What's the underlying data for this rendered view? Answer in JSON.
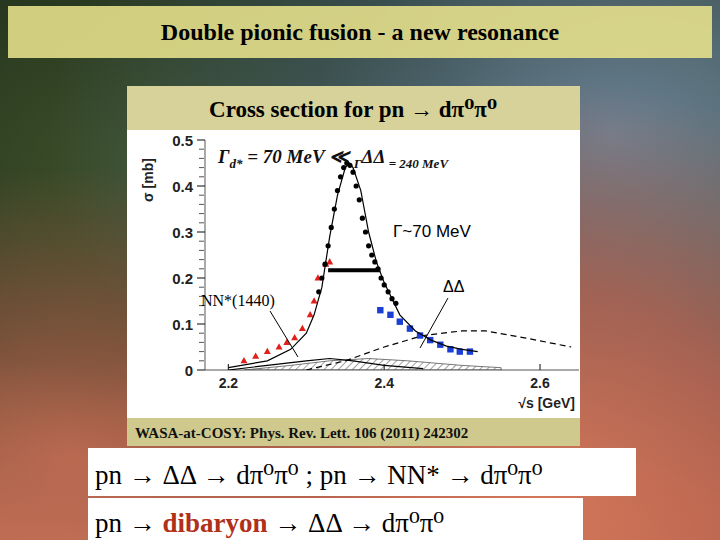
{
  "slide": {
    "title": "Double pionic fusion - a new resonance",
    "reference": "WASA-at-COSY: Phys. Rev. Lett. 106 (2011) 242302",
    "reactions": "pn → ΔΔ → dπ⁰π⁰ ; pn → NN* → dπ⁰π⁰",
    "dibaryon_reaction": [
      "pn → ",
      "dibaryon",
      " → ΔΔ → dπ⁰π⁰"
    ]
  },
  "chart_data": {
    "type": "scatter",
    "title": "Cross section for pn → dπ⁰π⁰",
    "x_label": "√s [GeV]",
    "y_label": "σ [mb]",
    "width_note": [
      "Γ",
      "d*",
      " = 70 MeV ≪ ",
      "Γ",
      "ΔΔ",
      " = 240 MeV"
    ],
    "annotations": [
      "Γ~70 MeV",
      "ΔΔ",
      "NN*(1440)"
    ],
    "xlim": [
      2.17,
      2.65
    ],
    "ylim": [
      0,
      0.5
    ],
    "xticks": [
      2.2,
      2.4,
      2.6
    ],
    "yticks": [
      0,
      0.1,
      0.2,
      0.3,
      0.4,
      0.5
    ],
    "grid": false,
    "series": [
      {
        "type": "area",
        "color": "#555555",
        "line_style": "solid",
        "x": [
          2.22,
          2.28,
          2.33,
          2.38,
          2.43,
          2.5,
          2.55
        ],
        "values": [
          0,
          0.01,
          0.02,
          0.025,
          0.02,
          0.01,
          0.005
        ]
      },
      {
        "type": "line",
        "color": "#000000",
        "line_style": "dashed",
        "x": [
          2.3,
          2.35,
          2.4,
          2.45,
          2.5,
          2.53,
          2.58,
          2.64
        ],
        "values": [
          0,
          0.02,
          0.05,
          0.075,
          0.085,
          0.085,
          0.07,
          0.05
        ]
      },
      {
        "type": "line",
        "color": "#000000",
        "line_style": "solid",
        "x": [
          2.2,
          2.25,
          2.3,
          2.33,
          2.36,
          2.4,
          2.45
        ],
        "values": [
          0,
          0.01,
          0.02,
          0.025,
          0.02,
          0.01,
          0.003
        ]
      },
      {
        "type": "scatter",
        "color": "#e0201b",
        "marker": "triangle",
        "x": [
          2.22,
          2.235,
          2.25,
          2.265,
          2.275,
          2.285,
          2.295,
          2.305,
          2.31,
          2.315,
          2.325,
          2.33
        ],
        "values": [
          0.02,
          0.03,
          0.04,
          0.05,
          0.06,
          0.07,
          0.09,
          0.12,
          0.15,
          0.2,
          0.23,
          0.235
        ]
      },
      {
        "type": "scatter",
        "color": "#1a3fd6",
        "marker": "square",
        "x": [
          2.395,
          2.408,
          2.42,
          2.433,
          2.446,
          2.459,
          2.472,
          2.485,
          2.497,
          2.51
        ],
        "values": [
          0.13,
          0.12,
          0.105,
          0.09,
          0.075,
          0.065,
          0.055,
          0.045,
          0.04,
          0.04
        ]
      },
      {
        "type": "scatter",
        "color": "#000000",
        "marker": "circle",
        "x": [
          2.316,
          2.32,
          2.324,
          2.328,
          2.332,
          2.336,
          2.34,
          2.344,
          2.348,
          2.352,
          2.356,
          2.36,
          2.364,
          2.368,
          2.372,
          2.376,
          2.38,
          2.384,
          2.388,
          2.392,
          2.396,
          2.4,
          2.405,
          2.41,
          2.415
        ],
        "values": [
          0.17,
          0.2,
          0.23,
          0.27,
          0.31,
          0.35,
          0.39,
          0.42,
          0.44,
          0.45,
          0.445,
          0.43,
          0.4,
          0.37,
          0.33,
          0.3,
          0.27,
          0.25,
          0.235,
          0.22,
          0.2,
          0.185,
          0.17,
          0.155,
          0.145
        ]
      },
      {
        "type": "line",
        "color": "#000000",
        "line_style": "solid",
        "x": [
          2.2,
          2.25,
          2.28,
          2.3,
          2.31,
          2.32,
          2.33,
          2.34,
          2.35,
          2.355,
          2.36,
          2.37,
          2.38,
          2.39,
          2.4,
          2.41,
          2.42,
          2.44,
          2.46,
          2.48,
          2.5,
          2.52
        ],
        "values": [
          0.005,
          0.02,
          0.045,
          0.08,
          0.12,
          0.18,
          0.29,
          0.38,
          0.44,
          0.45,
          0.44,
          0.39,
          0.3,
          0.235,
          0.19,
          0.155,
          0.12,
          0.085,
          0.065,
          0.052,
          0.045,
          0.04
        ]
      },
      {
        "type": "line",
        "color": "#000000",
        "line_style": "bold",
        "x": [
          2.328,
          2.395
        ],
        "values": [
          0.217,
          0.217
        ]
      }
    ]
  }
}
